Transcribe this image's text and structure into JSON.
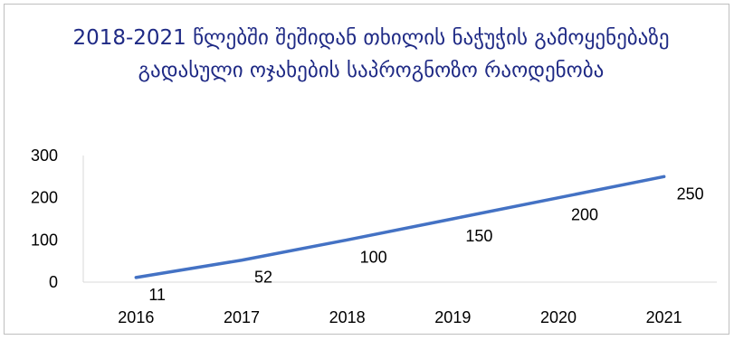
{
  "chart_data": {
    "type": "line",
    "title": "2018-2021 წლებში შეშიდან თხილის ნაჭუჭის გამოყენებაზე გადასული ოჯახების საპროგნოზო რაოდენობა",
    "xlabel": "",
    "ylabel": "",
    "categories": [
      "2016",
      "2017",
      "2018",
      "2019",
      "2020",
      "2021"
    ],
    "series": [
      {
        "values": [
          11,
          52,
          100,
          150,
          200,
          250
        ],
        "labels": [
          "11",
          "52",
          "100",
          "150",
          "200",
          "250"
        ],
        "color": "#4472c4"
      }
    ],
    "ylim": [
      0,
      300
    ],
    "yticks": [
      "0",
      "100",
      "200",
      "300"
    ],
    "grid": false,
    "legend": "none"
  }
}
